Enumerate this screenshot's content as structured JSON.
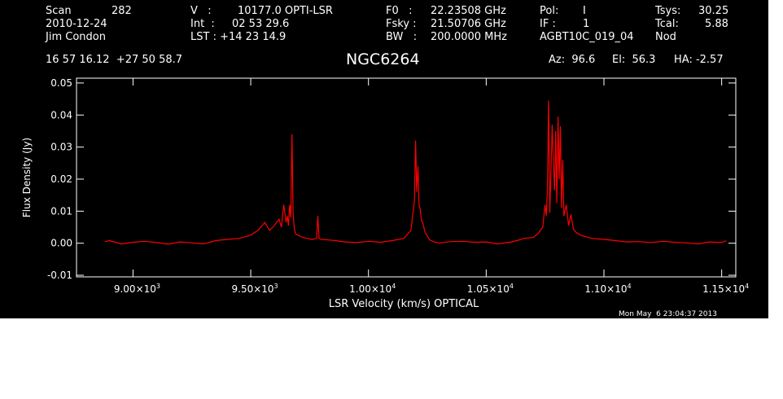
{
  "header": {
    "scan_label": "Scan",
    "scan_value": "282",
    "date": "2010-12-24",
    "observer": "Jim Condon",
    "v_label": "V   :",
    "v_value": "10177.0 OPTI-LSR",
    "int_label": "Int  :",
    "int_value": "02 53 29.6",
    "lst_label": "LST : +14 23 14.9",
    "f0_label": "F0   :",
    "f0_value": "22.23508 GHz",
    "fsky_label": "Fsky :",
    "fsky_value": "21.50706 GHz",
    "bw_label": "BW   :",
    "bw_value": "200.0000 MHz",
    "pol_label": "Pol:",
    "pol_value": "I",
    "if_label": "IF :",
    "if_value": "1",
    "project": "AGBT10C_019_04",
    "tsys_label": "Tsys:",
    "tsys_value": "30.25",
    "tcal_label": "Tcal:",
    "tcal_value": "5.88",
    "proc": "Nod",
    "coords": "16 57 16.12  +27 50 58.7",
    "source": "NGC6264",
    "az": "Az:  96.6",
    "el": "El:  56.3",
    "ha": "HA: -2.57",
    "timestamp": "Mon May  6 23:04:37 2013"
  },
  "chart_data": {
    "type": "line",
    "xlabel": "LSR Velocity (km/s) OPTICAL",
    "ylabel": "Flux Density (Jy)",
    "xlim": [
      8760,
      11560
    ],
    "ylim": [
      -0.0105,
      0.0515
    ],
    "x_ticks": [
      {
        "value": 9000,
        "mant": "9.00",
        "exp": "3"
      },
      {
        "value": 9500,
        "mant": "9.50",
        "exp": "3"
      },
      {
        "value": 10000,
        "mant": "1.00",
        "exp": "4"
      },
      {
        "value": 10500,
        "mant": "1.05",
        "exp": "4"
      },
      {
        "value": 11000,
        "mant": "1.10",
        "exp": "4"
      },
      {
        "value": 11500,
        "mant": "1.15",
        "exp": "4"
      }
    ],
    "y_ticks": [
      {
        "value": -0.01,
        "label": "-0.01"
      },
      {
        "value": 0.0,
        "label": "0.00"
      },
      {
        "value": 0.01,
        "label": "0.01"
      },
      {
        "value": 0.02,
        "label": "0.02"
      },
      {
        "value": 0.03,
        "label": "0.03"
      },
      {
        "value": 0.04,
        "label": "0.04"
      },
      {
        "value": 0.05,
        "label": "0.05"
      }
    ],
    "series": [
      {
        "color": "#ff0000",
        "x": [
          8880,
          8900,
          8950,
          9000,
          9050,
          9100,
          9150,
          9200,
          9250,
          9300,
          9350,
          9400,
          9450,
          9500,
          9530,
          9560,
          9580,
          9600,
          9620,
          9630,
          9640,
          9650,
          9655,
          9660,
          9665,
          9670,
          9675,
          9680,
          9685,
          9690,
          9700,
          9720,
          9740,
          9760,
          9780,
          9785,
          9790,
          9800,
          9830,
          9860,
          9900,
          9950,
          10000,
          10050,
          10100,
          10150,
          10180,
          10195,
          10200,
          10205,
          10210,
          10215,
          10220,
          10225,
          10230,
          10240,
          10260,
          10280,
          10300,
          10350,
          10400,
          10450,
          10500,
          10550,
          10600,
          10630,
          10660,
          10700,
          10720,
          10740,
          10750,
          10755,
          10760,
          10765,
          10770,
          10775,
          10780,
          10785,
          10790,
          10795,
          10800,
          10805,
          10810,
          10815,
          10820,
          10825,
          10830,
          10840,
          10850,
          10860,
          10870,
          10880,
          10900,
          10950,
          11000,
          11050,
          11100,
          11150,
          11200,
          11250,
          11300,
          11350,
          11400,
          11450,
          11500,
          11520
        ],
        "y": [
          0.0005,
          0.0008,
          -0.0002,
          0.0003,
          0.0006,
          0.0002,
          -0.0003,
          0.0004,
          0.0001,
          -0.0002,
          0.0008,
          0.0012,
          0.0015,
          0.0025,
          0.004,
          0.0065,
          0.004,
          0.0055,
          0.0075,
          0.005,
          0.012,
          0.0065,
          0.0085,
          0.0055,
          0.012,
          0.008,
          0.034,
          0.0095,
          0.0045,
          0.003,
          0.0025,
          0.0018,
          0.0015,
          0.0012,
          0.0015,
          0.0085,
          0.0015,
          0.0012,
          0.001,
          0.0008,
          0.0004,
          0.0002,
          0.0006,
          0.0003,
          0.0008,
          0.0015,
          0.004,
          0.013,
          0.032,
          0.016,
          0.024,
          0.012,
          0.0105,
          0.007,
          0.0065,
          0.0035,
          0.001,
          0.0004,
          0.0001,
          0.0005,
          0.0006,
          0.0003,
          0.0004,
          -0.0002,
          0.0003,
          0.0008,
          0.0015,
          0.0018,
          0.003,
          0.005,
          0.012,
          0.0085,
          0.017,
          0.0445,
          0.0095,
          0.022,
          0.037,
          0.026,
          0.0165,
          0.035,
          0.0125,
          0.0395,
          0.02,
          0.0365,
          0.011,
          0.026,
          0.0085,
          0.012,
          0.0055,
          0.009,
          0.0045,
          0.0035,
          0.0025,
          0.0015,
          0.0012,
          0.0008,
          0.0004,
          0.0005,
          0.0002,
          0.0006,
          0.0003,
          0.0001,
          -0.0002,
          0.0004,
          0.0002,
          0.0008
        ]
      }
    ]
  }
}
